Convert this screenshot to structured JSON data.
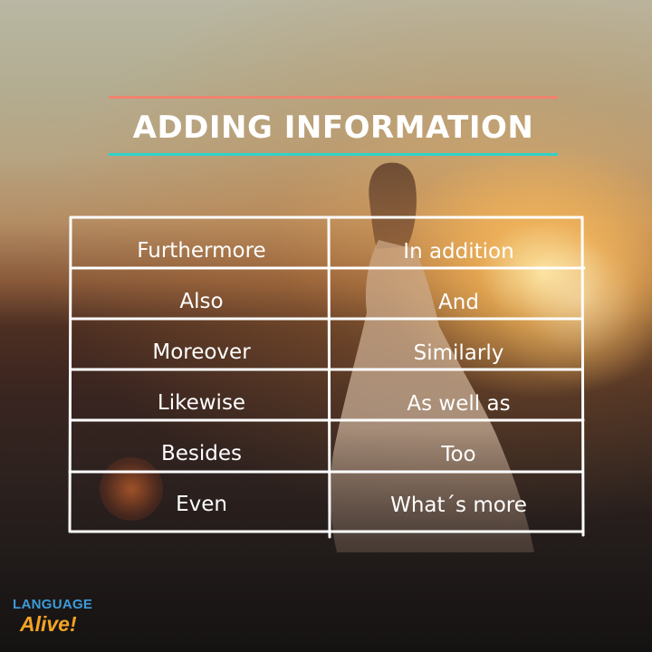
{
  "title": "ADDING INFORMATION",
  "colors": {
    "title_line_top": "#f0836e",
    "title_line_bottom": "#2ed3c9",
    "text": "#ffffff",
    "logo_blue": "#3c9bd8",
    "logo_orange": "#f3a424"
  },
  "table": {
    "rows": [
      {
        "left": "Furthermore",
        "right": "In addition"
      },
      {
        "left": "Also",
        "right": "And"
      },
      {
        "left": "Moreover",
        "right": "Similarly"
      },
      {
        "left": "Likewise",
        "right": "As well as"
      },
      {
        "left": "Besides",
        "right": "Too"
      },
      {
        "left": "Even",
        "right": "What´s more"
      }
    ]
  },
  "logo": {
    "line1": "LANGUAGE",
    "line2": "Alive!"
  }
}
